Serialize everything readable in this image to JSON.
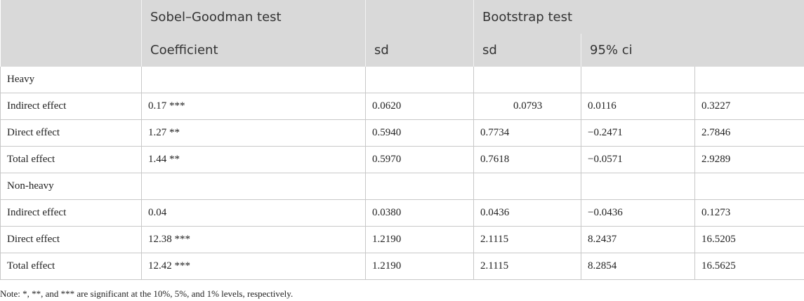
{
  "header": {
    "group_sobel": "Sobel–Goodman test",
    "group_bootstrap": "Bootstrap test",
    "col_coefficient": "Coefficient",
    "col_sd_sobel": "sd",
    "col_sd_bootstrap": "sd",
    "col_ci": "95% ci"
  },
  "rows": [
    {
      "label": "Heavy",
      "coef": "",
      "sd": "",
      "bsd": "",
      "ci_low": "",
      "ci_high": ""
    },
    {
      "label": "Indirect effect",
      "coef": "0.17 ***",
      "sd": "0.0620",
      "bsd": "0.0793",
      "ci_low": "0.0116",
      "ci_high": "0.3227"
    },
    {
      "label": "Direct effect",
      "coef": "1.27 **",
      "sd": "0.5940",
      "bsd": "0.7734",
      "ci_low": "−0.2471",
      "ci_high": "2.7846"
    },
    {
      "label": "Total effect",
      "coef": "1.44 **",
      "sd": "0.5970",
      "bsd": "0.7618",
      "ci_low": "−0.0571",
      "ci_high": "2.9289"
    },
    {
      "label": "Non-heavy",
      "coef": "",
      "sd": "",
      "bsd": "",
      "ci_low": "",
      "ci_high": ""
    },
    {
      "label": "Indirect effect",
      "coef": "0.04",
      "sd": "0.0380",
      "bsd": "0.0436",
      "ci_low": "−0.0436",
      "ci_high": "0.1273"
    },
    {
      "label": "Direct effect",
      "coef": "12.38 ***",
      "sd": "1.2190",
      "bsd": "2.1115",
      "ci_low": "8.2437",
      "ci_high": "16.5205"
    },
    {
      "label": "Total effect",
      "coef": "12.42 ***",
      "sd": "1.2190",
      "bsd": "2.1115",
      "ci_low": "8.2854",
      "ci_high": "16.5625"
    }
  ],
  "note": "Note: *, **, and *** are significant at the 10%, 5%, and 1% levels, respectively."
}
